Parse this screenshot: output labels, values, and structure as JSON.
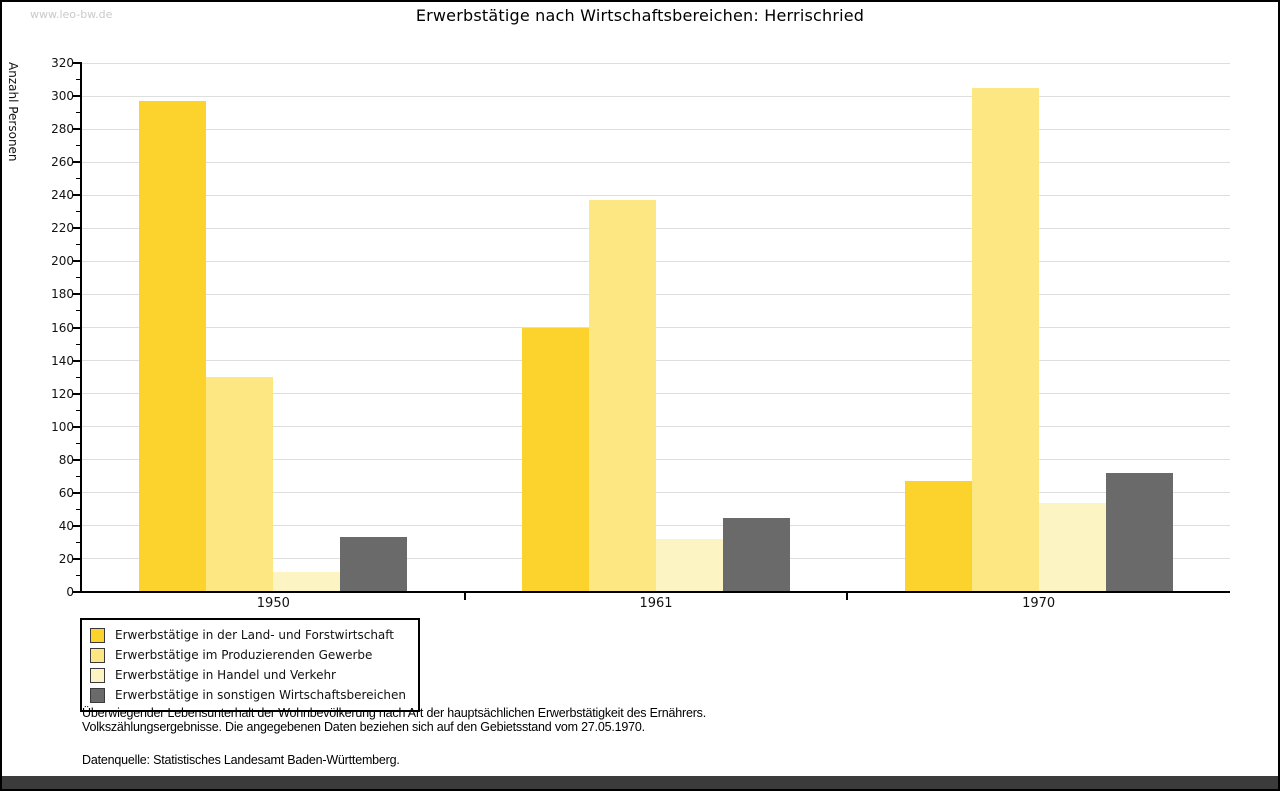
{
  "page": {
    "watermark": "www.leo-bw.de"
  },
  "chart_data": {
    "type": "bar",
    "title": "Erwerbstätige nach Wirtschaftsbereichen: Herrischried",
    "ylabel": "Anzahl Personen",
    "xlabel": "",
    "categories": [
      "1950",
      "1961",
      "1970"
    ],
    "series": [
      {
        "name": "Erwerbstätige in der Land- und Forstwirtschaft",
        "color": "#FCD32D",
        "values": [
          297,
          160,
          67
        ]
      },
      {
        "name": "Erwerbstätige im Produzierenden Gewerbe",
        "color": "#FCE783",
        "values": [
          130,
          237,
          305
        ]
      },
      {
        "name": "Erwerbstätige in Handel und Verkehr",
        "color": "#FCF4C2",
        "values": [
          12,
          32,
          54
        ]
      },
      {
        "name": "Erwerbstätige in sonstigen Wirtschaftsbereichen",
        "color": "#6A6A6A",
        "values": [
          33,
          45,
          72
        ]
      }
    ],
    "ylim": [
      0,
      320
    ],
    "ytick_step": 20,
    "yminor_step": 10,
    "grid": "horizontal",
    "legend_position": "bottom-left",
    "gridline_color": "#DEDEDE",
    "axis_color": "#000000"
  },
  "footer": {
    "line1": "Überwiegender Lebensunterhalt der Wohnbevölkerung nach Art der hauptsächlichen Erwerbstätigkeit des Ernährers.",
    "line2": "Volkszählungsergebnisse. Die angegebenen Daten beziehen sich auf den Gebietsstand vom 27.05.1970.",
    "source": "Datenquelle: Statistisches Landesamt Baden-Württemberg."
  }
}
